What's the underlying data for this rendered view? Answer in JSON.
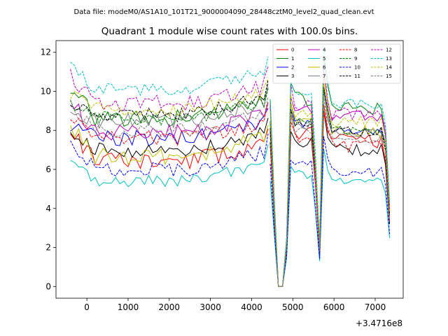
{
  "header": {
    "file_label": "Data file: modeM0/AS1A10_101T21_9000004090_28448cztM0_level2_quad_clean.evt"
  },
  "chart_data": {
    "type": "line",
    "title": "Quadrant 1 module wise count rates with 100.0s bins.",
    "xlabel": "",
    "ylabel": "",
    "x_offset_label": "+3.4716e8",
    "xlim": [
      -750,
      7680
    ],
    "ylim": [
      -0.6,
      12.6
    ],
    "xticks": [
      0,
      1000,
      2000,
      3000,
      4000,
      5000,
      6000,
      7000
    ],
    "xtick_labels": [
      "0",
      "1000",
      "2000",
      "3000",
      "4000",
      "5000",
      "6000",
      "7000"
    ],
    "yticks": [
      0,
      2,
      4,
      6,
      8,
      10,
      12
    ],
    "ytick_labels": [
      "0",
      "2",
      "4",
      "6",
      "8",
      "10",
      "12"
    ],
    "legend_position": "top-right",
    "legend_columns": 4,
    "colors": {
      "red": "#ff0000",
      "green": "#008000",
      "blue": "#0000ff",
      "black": "#000000",
      "magenta": "#bf00bf",
      "cyan": "#00bfbf",
      "olive": "#bfbf00",
      "gray": "#808080"
    },
    "segments": [
      {
        "x_start": -400,
        "x_end": 4400,
        "step": 100
      },
      {
        "x_start": 4450,
        "x_end": 7350,
        "step": 100
      }
    ],
    "series": [
      {
        "name": "0",
        "color": "#ff0000",
        "dash": "solid",
        "start": 8.1,
        "plateau": 6.4,
        "level": 8.1,
        "amp": 0.45,
        "seed": 11
      },
      {
        "name": "1",
        "color": "#008000",
        "dash": "solid",
        "start": 10.3,
        "plateau": 8.6,
        "level": 9.9,
        "amp": 0.45,
        "seed": 23
      },
      {
        "name": "2",
        "color": "#0000ff",
        "dash": "solid",
        "start": 8.3,
        "plateau": 7.6,
        "level": 8.7,
        "amp": 0.4,
        "seed": 37
      },
      {
        "name": "3",
        "color": "#000000",
        "dash": "solid",
        "start": 8.0,
        "plateau": 7.0,
        "level": 7.6,
        "amp": 0.4,
        "seed": 41
      },
      {
        "name": "4",
        "color": "#bf00bf",
        "dash": "solid",
        "start": 9.5,
        "plateau": 7.9,
        "level": 9.5,
        "amp": 0.4,
        "seed": 53
      },
      {
        "name": "5",
        "color": "#00bfbf",
        "dash": "solid",
        "start": 6.6,
        "plateau": 5.4,
        "level": 5.9,
        "amp": 0.3,
        "seed": 67
      },
      {
        "name": "6",
        "color": "#bfbf00",
        "dash": "solid",
        "start": 8.2,
        "plateau": 6.7,
        "level": 8.6,
        "amp": 0.45,
        "seed": 71
      },
      {
        "name": "7",
        "color": "#808080",
        "dash": "solid",
        "start": 9.0,
        "plateau": 8.5,
        "level": 8.6,
        "amp": 0.4,
        "seed": 83
      },
      {
        "name": "8",
        "color": "#ff0000",
        "dash": "dashed",
        "start": 8.6,
        "plateau": 7.6,
        "level": 7.8,
        "amp": 0.4,
        "seed": 97
      },
      {
        "name": "9",
        "color": "#008000",
        "dash": "dashed",
        "start": 9.4,
        "plateau": 8.6,
        "level": 8.7,
        "amp": 0.35,
        "seed": 101
      },
      {
        "name": "10",
        "color": "#0000ff",
        "dash": "dashed",
        "start": 7.4,
        "plateau": 6.0,
        "level": 6.4,
        "amp": 0.35,
        "seed": 113
      },
      {
        "name": "11",
        "color": "#000000",
        "dash": "dashed",
        "start": 9.2,
        "plateau": 8.8,
        "level": 8.7,
        "amp": 0.35,
        "seed": 127
      },
      {
        "name": "12",
        "color": "#bf00bf",
        "dash": "dashed",
        "start": 10.8,
        "plateau": 9.4,
        "level": 9.6,
        "amp": 0.4,
        "seed": 131
      },
      {
        "name": "13",
        "color": "#00bfbf",
        "dash": "dashed",
        "start": 11.5,
        "plateau": 10.1,
        "level": 10.2,
        "amp": 0.3,
        "seed": 139
      },
      {
        "name": "14",
        "color": "#bfbf00",
        "dash": "dashed",
        "start": 9.8,
        "plateau": 9.1,
        "level": 9.2,
        "amp": 0.35,
        "seed": 149
      },
      {
        "name": "15",
        "color": "#808080",
        "dash": "dashed",
        "start": 9.3,
        "plateau": 8.0,
        "level": 8.2,
        "amp": 0.35,
        "seed": 157
      }
    ]
  }
}
